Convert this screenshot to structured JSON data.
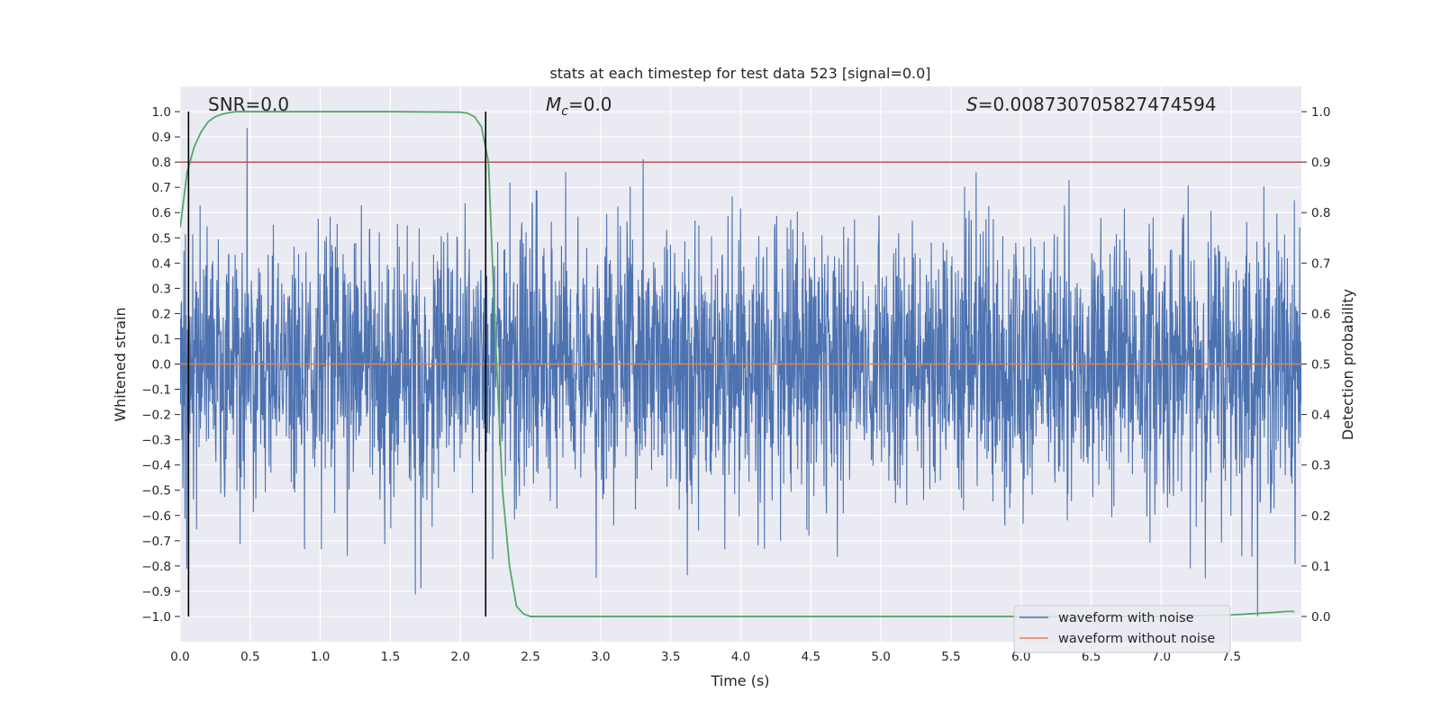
{
  "chart_data": {
    "type": "line",
    "title": "stats at each timestep for test data 523 [signal=0.0]",
    "xlabel": "Time (s)",
    "ylabel": "Whitened strain",
    "y2label": "Detection probability",
    "xlim": [
      0.0,
      8.0
    ],
    "ylim": [
      -1.1,
      1.1
    ],
    "y2lim": [
      -0.05,
      1.05
    ],
    "grid": true,
    "xticks": [
      0.0,
      0.5,
      1.0,
      1.5,
      2.0,
      2.5,
      3.0,
      3.5,
      4.0,
      4.5,
      5.0,
      5.5,
      6.0,
      6.5,
      7.0,
      7.5
    ],
    "xtick_labels": [
      "0.0",
      "0.5",
      "1.0",
      "1.5",
      "2.0",
      "2.5",
      "3.0",
      "3.5",
      "4.0",
      "4.5",
      "5.0",
      "5.5",
      "6.0",
      "6.5",
      "7.0",
      "7.5"
    ],
    "yticks": [
      1.0,
      0.9,
      0.8,
      0.7,
      0.6,
      0.5,
      0.4,
      0.3,
      0.2,
      0.1,
      0.0,
      -0.1,
      -0.2,
      -0.3,
      -0.4,
      -0.5,
      -0.6,
      -0.7,
      -0.8,
      -0.9,
      -1.0
    ],
    "ytick_labels": [
      "1.0",
      "0.9",
      "0.8",
      "0.7",
      "0.6",
      "0.5",
      "0.4",
      "0.3",
      "0.2",
      "0.1",
      "0.0",
      "−0.1",
      "−0.2",
      "−0.3",
      "−0.4",
      "−0.5",
      "−0.6",
      "−0.7",
      "−0.8",
      "−0.9",
      "−1.0"
    ],
    "y2ticks": [
      1.0,
      0.9,
      0.8,
      0.7,
      0.6,
      0.5,
      0.4,
      0.3,
      0.2,
      0.1,
      0.0
    ],
    "y2tick_labels": [
      "1.0",
      "0.9",
      "0.8",
      "0.7",
      "0.6",
      "0.5",
      "0.4",
      "0.3",
      "0.2",
      "0.1",
      "0.0"
    ],
    "annotations": {
      "snr": "SNR=0.0",
      "mc_symbol": "M",
      "mc_subscript": "c",
      "mc_value": "=0.0",
      "s_symbol": "S",
      "s_value": "=0.008730705827474594"
    },
    "legend": {
      "location": "lower-right",
      "entries": [
        {
          "label": "waveform with noise",
          "color": "#4c72b0"
        },
        {
          "label": "waveform without noise",
          "color": "#dd8452"
        }
      ]
    },
    "series": [
      {
        "name": "waveform with noise",
        "axis": "left",
        "color": "#4c72b0",
        "description": "dense noise, amplitude envelope roughly between -1.0 and 1.0"
      },
      {
        "name": "waveform without noise",
        "axis": "left",
        "color": "#dd8452",
        "x": [
          0.0,
          8.0
        ],
        "y": [
          0.0,
          0.0
        ]
      },
      {
        "name": "detection probability",
        "axis": "right",
        "color": "#55a868",
        "x": [
          0.0,
          0.05,
          0.1,
          0.15,
          0.2,
          0.25,
          0.3,
          0.35,
          0.4,
          0.5,
          1.0,
          1.5,
          2.0,
          2.05,
          2.1,
          2.15,
          2.2,
          2.25,
          2.3,
          2.35,
          2.4,
          2.45,
          2.5,
          3.0,
          4.0,
          5.0,
          6.0,
          7.0,
          7.5,
          7.8,
          7.9,
          7.95
        ],
        "y": [
          0.77,
          0.88,
          0.93,
          0.96,
          0.98,
          0.99,
          0.995,
          0.998,
          1.0,
          1.0,
          1.0,
          1.0,
          0.999,
          0.997,
          0.99,
          0.97,
          0.9,
          0.55,
          0.25,
          0.1,
          0.02,
          0.005,
          0.0,
          0.0,
          0.0,
          0.0,
          0.0,
          0.0,
          0.003,
          0.008,
          0.01,
          0.01
        ]
      },
      {
        "name": "threshold",
        "axis": "right",
        "color": "#c44e52",
        "x": [
          0.0,
          8.0
        ],
        "y": [
          0.9,
          0.9
        ]
      }
    ],
    "vertical_lines": [
      {
        "x": 0.06,
        "ymin": -1.0,
        "ymax": 1.0,
        "color": "#000000"
      },
      {
        "x": 2.18,
        "ymin": -1.0,
        "ymax": 1.0,
        "color": "#000000"
      }
    ]
  }
}
